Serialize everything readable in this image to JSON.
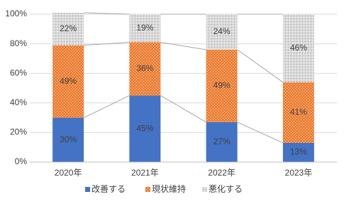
{
  "chart_data": {
    "type": "stacked-bar",
    "categories": [
      "2020年",
      "2021年",
      "2022年",
      "2023年"
    ],
    "series": [
      {
        "name": "改善する",
        "color": "#4472c4",
        "values": [
          30,
          45,
          27,
          13
        ],
        "value_labels": [
          "30%",
          "45%",
          "27%",
          "13%"
        ]
      },
      {
        "name": "現状維持",
        "color": "#ed7d31",
        "values": [
          49,
          36,
          49,
          41
        ],
        "value_labels": [
          "49%",
          "36%",
          "49%",
          "41%"
        ]
      },
      {
        "name": "悪化する",
        "color": "#d9d9d9",
        "values": [
          22,
          19,
          24,
          46
        ],
        "value_labels": [
          "22%",
          "19%",
          "24%",
          "46%"
        ]
      }
    ],
    "ylim": [
      0,
      100
    ],
    "yticks": [
      {
        "value": 0,
        "label": "0%"
      },
      {
        "value": 20,
        "label": "20%"
      },
      {
        "value": 40,
        "label": "40%"
      },
      {
        "value": 60,
        "label": "60%"
      },
      {
        "value": 80,
        "label": "80%"
      },
      {
        "value": 100,
        "label": "100%"
      }
    ],
    "grid": true,
    "legend": "bottom"
  }
}
